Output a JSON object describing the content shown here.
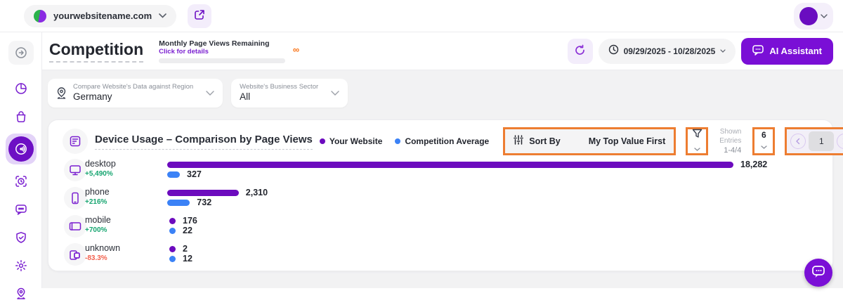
{
  "topbar": {
    "website": "yourwebsitename.com"
  },
  "sidebar": {
    "items": [
      {
        "icon": "collapse-panel",
        "muted": true
      },
      {
        "icon": "pie-chart"
      },
      {
        "icon": "shopping-bag"
      },
      {
        "icon": "radar",
        "active": true
      },
      {
        "icon": "target-scan"
      },
      {
        "icon": "chat-bubble"
      },
      {
        "icon": "shield-check"
      },
      {
        "icon": "settings-gear"
      },
      {
        "icon": "location-pin"
      }
    ]
  },
  "header": {
    "title": "Competition",
    "quota_label": "Monthly Page Views Remaining",
    "quota_link": "Click for details",
    "quota_infinity": "∞",
    "date_range": "09/29/2025 - 10/28/2025",
    "ai_assistant_label": "AI Assistant"
  },
  "filters": [
    {
      "icon": "location-pin-icon",
      "label": "Compare Website's Data against Region",
      "value": "Germany"
    },
    {
      "icon": null,
      "label": "Website's Business Sector",
      "value": "All"
    }
  ],
  "chart": {
    "title": "Device Usage – Comparison by Page Views",
    "sort_by_label": "Sort By",
    "sort_by_value": "My Top Value First",
    "shown_entries_label": "Shown Entries",
    "shown_entries_value": "1-4/4",
    "page_size": "6",
    "page_number": "1"
  },
  "chart_data": {
    "type": "bar",
    "orientation": "horizontal",
    "title": "Device Usage – Comparison by Page Views",
    "categories": [
      "desktop",
      "phone",
      "mobile",
      "unknown"
    ],
    "series": [
      {
        "name": "Your Website",
        "color": "#6C0BBE",
        "values": [
          18282,
          2310,
          176,
          2
        ],
        "labels": [
          "18,282",
          "2,310",
          "176",
          "2"
        ]
      },
      {
        "name": "Competition Average",
        "color": "#3B82F6",
        "values": [
          327,
          732,
          22,
          12
        ],
        "labels": [
          "327",
          "732",
          "22",
          "12"
        ]
      }
    ],
    "deltas": [
      "+5,490%",
      "+216%",
      "+700%",
      "-83.3%"
    ],
    "xmax": 18282,
    "legend_position": "top-right",
    "grid": false
  },
  "colors": {
    "accent": "#6D0FC4",
    "your_website": "#6C0BBE",
    "competition_average": "#3B82F6",
    "positive": "#16A570",
    "negative": "#F2604D",
    "annotation": "#ED7D31",
    "infinity": "#F97316"
  }
}
